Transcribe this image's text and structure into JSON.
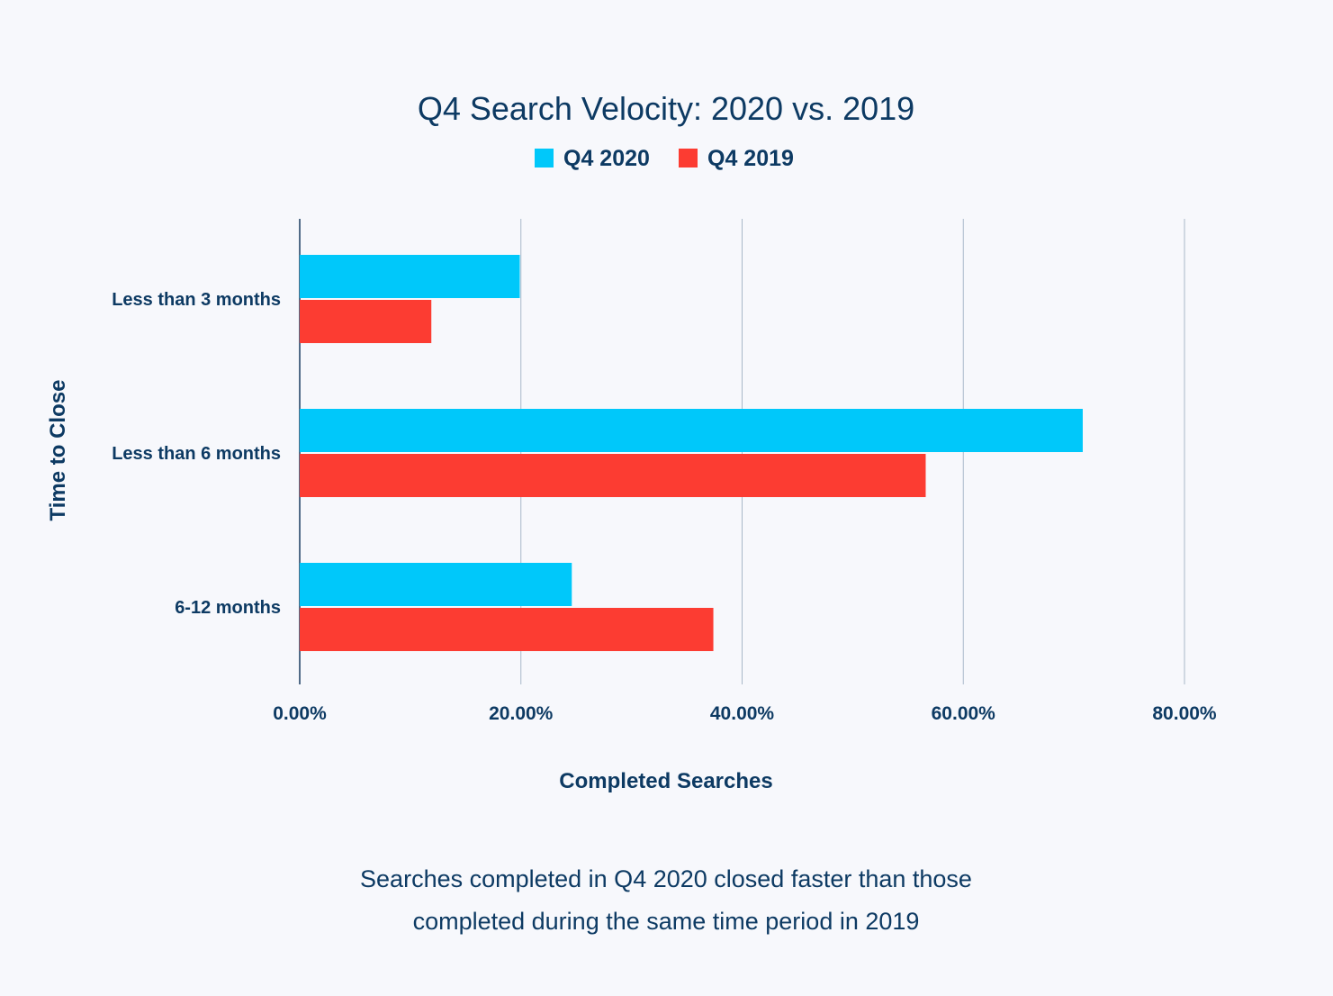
{
  "chart_data": {
    "type": "bar",
    "orientation": "horizontal",
    "title": "Q4 Search Velocity: 2020 vs. 2019",
    "xlabel": "Completed Searches",
    "ylabel": "Time to Close",
    "categories": [
      "Less than 3 months",
      "Less than 6 months",
      "6-12 months"
    ],
    "series": [
      {
        "name": "Q4 2020",
        "color": "#00c8fa",
        "values": [
          19.9,
          70.8,
          24.6
        ]
      },
      {
        "name": "Q4 2019",
        "color": "#fc3c32",
        "values": [
          11.9,
          56.6,
          37.4
        ]
      }
    ],
    "xlim": [
      0,
      80
    ],
    "xticks": [
      "0.00%",
      "20.00%",
      "40.00%",
      "60.00%",
      "80.00%"
    ],
    "grid": true,
    "legend_position": "top-center"
  },
  "caption": {
    "line1": "Searches completed in Q4 2020 closed faster than those",
    "line2": "completed during the same time period in 2019"
  }
}
